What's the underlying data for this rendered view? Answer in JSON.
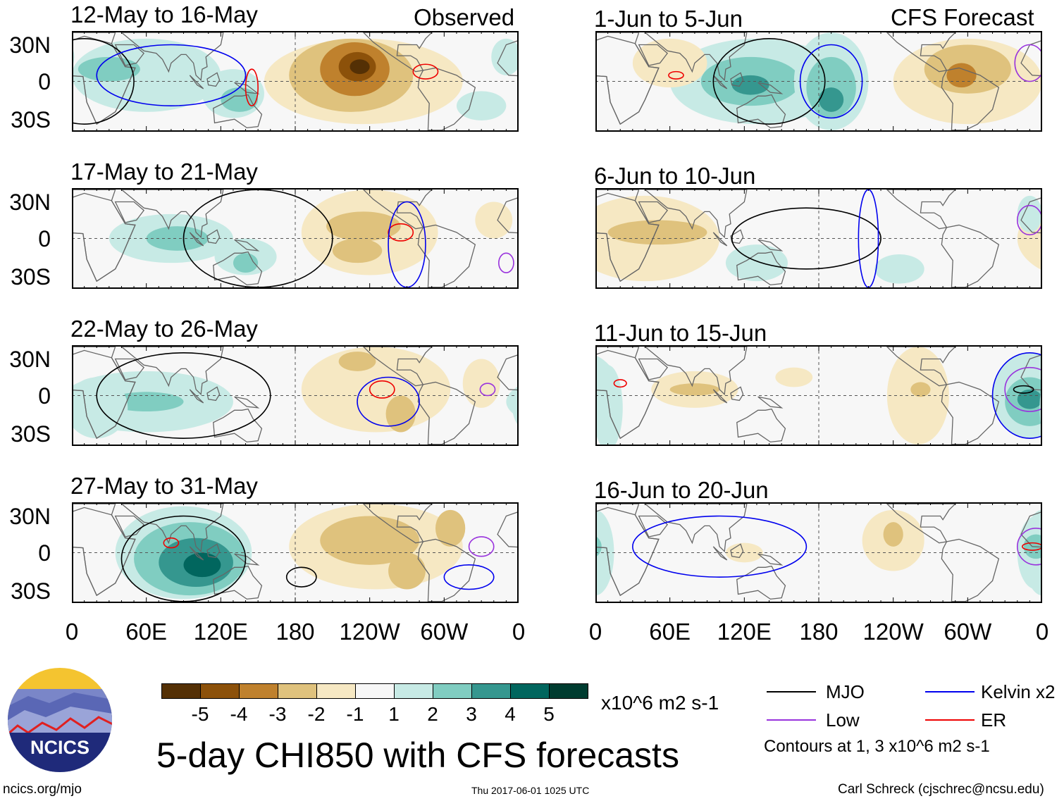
{
  "colors": {
    "-5": "#543005",
    "-4": "#8c510a",
    "-3": "#bf812d",
    "-2": "#dfc27d",
    "-1": "#f6e8c3",
    "1": "#c7eae5",
    "2": "#80cdc1",
    "3": "#35978f",
    "4": "#01665e",
    "5": "#003c30",
    "mjo": "#000000",
    "kelvin": "#0000ee",
    "low": "#9933dd",
    "er": "#ee0000"
  },
  "header": {
    "observed": "Observed",
    "forecast": "CFS Forecast"
  },
  "lat_labels": [
    "30N",
    "0",
    "30S"
  ],
  "lon_labels": [
    "0",
    "60E",
    "120E",
    "180",
    "120W",
    "60W",
    "0"
  ],
  "panels": [
    {
      "title": "12-May to 16-May",
      "blobs": [
        [
          235,
          0,
          80,
          35,
          -1
        ],
        [
          225,
          5,
          50,
          30,
          -2
        ],
        [
          228,
          10,
          28,
          22,
          -3
        ],
        [
          230,
          12,
          15,
          12,
          -4
        ],
        [
          232,
          12,
          8,
          6,
          -5
        ],
        [
          60,
          5,
          60,
          30,
          1
        ],
        [
          30,
          10,
          25,
          10,
          2
        ],
        [
          130,
          -10,
          25,
          20,
          1
        ],
        [
          135,
          -15,
          15,
          10,
          2
        ],
        [
          330,
          -20,
          20,
          12,
          1
        ],
        [
          350,
          20,
          12,
          15,
          1
        ]
      ],
      "contours": [
        [
          "mjo",
          10,
          0,
          40,
          35
        ],
        [
          "kelvin",
          80,
          5,
          60,
          25
        ],
        [
          "er",
          285,
          8,
          10,
          6
        ],
        [
          "er",
          145,
          -5,
          5,
          15
        ]
      ]
    },
    {
      "title": "17-May to 21-May",
      "blobs": [
        [
          240,
          5,
          55,
          35,
          -1
        ],
        [
          235,
          10,
          30,
          12,
          -2
        ],
        [
          230,
          -10,
          20,
          10,
          -2
        ],
        [
          80,
          0,
          50,
          20,
          1
        ],
        [
          85,
          0,
          25,
          10,
          2
        ],
        [
          140,
          -15,
          25,
          15,
          1
        ],
        [
          140,
          -20,
          10,
          8,
          2
        ],
        [
          340,
          15,
          15,
          15,
          -1
        ]
      ],
      "contours": [
        [
          "mjo",
          150,
          0,
          60,
          40
        ],
        [
          "er",
          265,
          5,
          10,
          7
        ],
        [
          "kelvin",
          270,
          -5,
          15,
          35
        ],
        [
          "low",
          350,
          -20,
          6,
          8
        ]
      ]
    },
    {
      "title": "22-May to 26-May",
      "blobs": [
        [
          245,
          5,
          60,
          35,
          -1
        ],
        [
          230,
          28,
          15,
          8,
          -2
        ],
        [
          265,
          -15,
          12,
          15,
          -2
        ],
        [
          60,
          -5,
          70,
          25,
          1
        ],
        [
          60,
          -5,
          30,
          8,
          2
        ],
        [
          20,
          -10,
          25,
          25,
          1
        ],
        [
          330,
          10,
          15,
          20,
          -1
        ]
      ],
      "contours": [
        [
          "er",
          250,
          5,
          10,
          7
        ],
        [
          "kelvin",
          255,
          -5,
          25,
          20
        ],
        [
          "mjo",
          90,
          0,
          70,
          35
        ],
        [
          "low",
          335,
          5,
          6,
          5
        ]
      ]
    },
    {
      "title": "27-May to 31-May",
      "blobs": [
        [
          245,
          5,
          70,
          35,
          -1
        ],
        [
          240,
          10,
          40,
          20,
          -2
        ],
        [
          270,
          -15,
          15,
          15,
          -2
        ],
        [
          305,
          20,
          12,
          15,
          -2
        ],
        [
          90,
          0,
          55,
          38,
          1
        ],
        [
          95,
          -5,
          45,
          30,
          2
        ],
        [
          100,
          -8,
          30,
          20,
          3
        ],
        [
          105,
          -10,
          15,
          10,
          4
        ]
      ],
      "contours": [
        [
          "mjo",
          90,
          -5,
          50,
          35
        ],
        [
          "mjo",
          185,
          -20,
          12,
          8
        ],
        [
          "kelvin",
          320,
          -20,
          20,
          10
        ],
        [
          "er",
          80,
          8,
          6,
          4
        ],
        [
          "low",
          330,
          5,
          10,
          8
        ]
      ]
    },
    {
      "title": "1-Jun to 5-Jun",
      "blobs": [
        [
          130,
          0,
          70,
          35,
          1
        ],
        [
          125,
          0,
          40,
          20,
          2
        ],
        [
          125,
          -3,
          15,
          8,
          3
        ],
        [
          190,
          0,
          30,
          40,
          1
        ],
        [
          190,
          -5,
          20,
          25,
          2
        ],
        [
          190,
          -15,
          10,
          10,
          3
        ],
        [
          300,
          0,
          60,
          35,
          -1
        ],
        [
          300,
          10,
          35,
          20,
          -2
        ],
        [
          295,
          5,
          12,
          10,
          -3
        ],
        [
          60,
          15,
          30,
          20,
          -1
        ]
      ],
      "contours": [
        [
          "mjo",
          140,
          0,
          45,
          35
        ],
        [
          "kelvin",
          190,
          0,
          25,
          30
        ],
        [
          "er",
          65,
          5,
          6,
          3
        ],
        [
          "low",
          350,
          15,
          12,
          15
        ]
      ]
    },
    {
      "title": "6-Jun to 10-Jun",
      "blobs": [
        [
          40,
          0,
          60,
          35,
          -1
        ],
        [
          50,
          5,
          40,
          10,
          -2
        ],
        [
          130,
          -20,
          25,
          15,
          1
        ],
        [
          245,
          -25,
          20,
          12,
          1
        ],
        [
          350,
          20,
          10,
          15,
          1
        ]
      ],
      "contours": [
        [
          "mjo",
          170,
          0,
          60,
          25
        ],
        [
          "kelvin",
          220,
          0,
          8,
          40
        ],
        [
          "low",
          350,
          15,
          10,
          12
        ]
      ]
    },
    {
      "title": "11-Jun to 15-Jun",
      "blobs": [
        [
          80,
          5,
          35,
          15,
          -1
        ],
        [
          80,
          5,
          20,
          5,
          -2
        ],
        [
          160,
          15,
          15,
          8,
          -1
        ],
        [
          260,
          0,
          25,
          40,
          -1
        ],
        [
          262,
          5,
          8,
          6,
          -2
        ],
        [
          350,
          0,
          30,
          35,
          1
        ],
        [
          350,
          -5,
          20,
          20,
          2
        ],
        [
          350,
          -3,
          10,
          8,
          3
        ],
        [
          10,
          -10,
          12,
          35,
          1
        ]
      ],
      "contours": [
        [
          "kelvin",
          350,
          0,
          30,
          35
        ],
        [
          "low",
          350,
          5,
          20,
          18
        ],
        [
          "mjo",
          345,
          5,
          8,
          3
        ],
        [
          "er",
          20,
          10,
          5,
          3
        ]
      ]
    },
    {
      "title": "16-Jun to 20-Jun",
      "blobs": [
        [
          240,
          10,
          25,
          25,
          -1
        ],
        [
          240,
          15,
          8,
          10,
          -2
        ],
        [
          120,
          0,
          15,
          8,
          -1
        ],
        [
          0,
          0,
          15,
          35,
          1
        ],
        [
          355,
          0,
          15,
          30,
          1
        ],
        [
          355,
          5,
          10,
          10,
          2
        ]
      ],
      "contours": [
        [
          "kelvin",
          100,
          5,
          70,
          25
        ],
        [
          "low",
          355,
          5,
          15,
          15
        ],
        [
          "er",
          352,
          5,
          8,
          3
        ]
      ]
    }
  ],
  "colorbar": {
    "labels": [
      "-5",
      "-4",
      "-3",
      "-2",
      "-1",
      "1",
      "2",
      "3",
      "4",
      "5"
    ],
    "units": "x10^6 m2 s-1"
  },
  "title": "5-day CHI850 with CFS forecasts",
  "legend": {
    "mjo": "MJO",
    "kelvin": "Kelvin x2",
    "low": "Low",
    "er": "ER",
    "note": "Contours at 1, 3 x10^6 m2 s-1"
  },
  "logo": {
    "text": "NCICS"
  },
  "footer": {
    "url": "ncics.org/mjo",
    "timestamp": "Thu 2017-06-01 1025 UTC",
    "credit": "Carl Schreck (cjschrec@ncsu.edu)"
  }
}
